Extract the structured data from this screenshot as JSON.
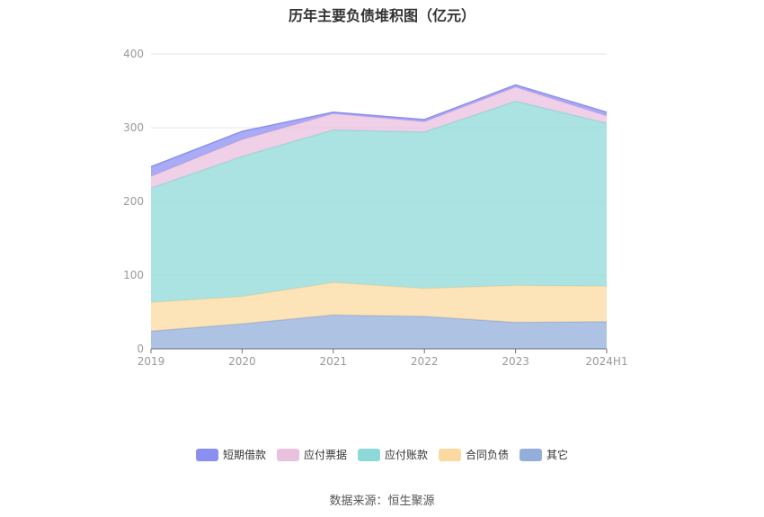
{
  "chart_data": {
    "type": "area",
    "stacked": true,
    "title": "历年主要负债堆积图（亿元）",
    "categories": [
      "2019",
      "2020",
      "2021",
      "2022",
      "2023",
      "2024H1"
    ],
    "ylim": [
      0,
      400
    ],
    "yticks": [
      0,
      100,
      200,
      300,
      400
    ],
    "grid": true,
    "legend_position": "bottom",
    "series": [
      {
        "name": "其它",
        "color": "#93AEDB",
        "values": [
          24,
          34,
          46,
          44,
          36,
          37
        ]
      },
      {
        "name": "合同负债",
        "color": "#FBD9A0",
        "values": [
          39,
          37,
          44,
          38,
          50,
          48
        ]
      },
      {
        "name": "应付账款",
        "color": "#8DD9D8",
        "values": [
          155,
          190,
          207,
          212,
          250,
          221
        ]
      },
      {
        "name": "应付票据",
        "color": "#EAC0DF",
        "values": [
          16,
          23,
          22,
          14,
          19,
          10
        ]
      },
      {
        "name": "短期借款",
        "color": "#8C8FF2",
        "values": [
          13,
          11,
          2,
          3,
          3,
          5
        ]
      }
    ]
  },
  "legend_order": [
    "短期借款",
    "应付票据",
    "应付账款",
    "合同负债",
    "其它"
  ],
  "source": "数据来源：恒生聚源"
}
